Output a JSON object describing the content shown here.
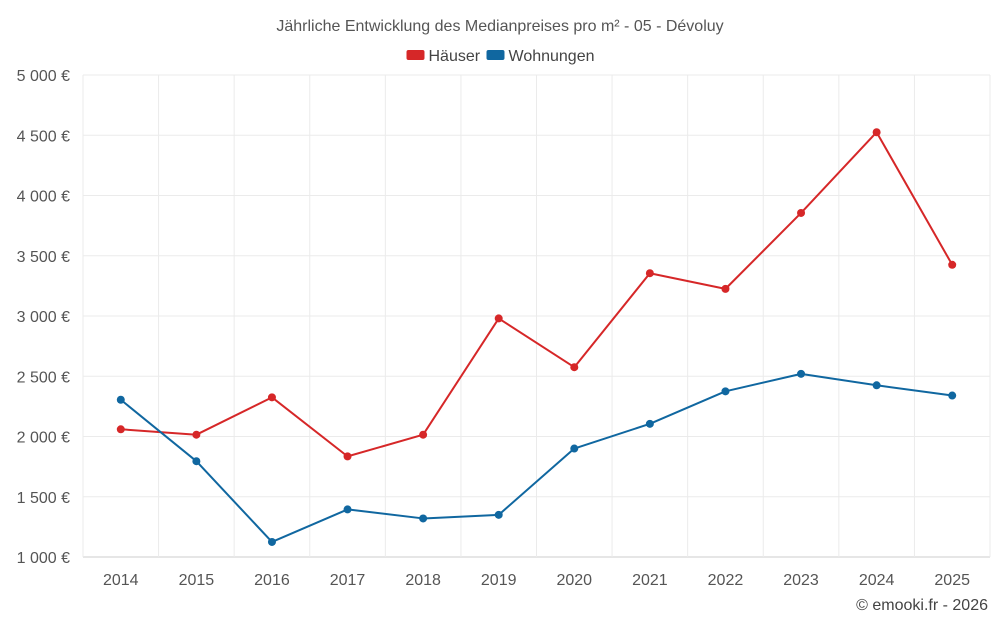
{
  "chart_data": {
    "type": "line",
    "title": "Jährliche Entwicklung des Medianpreises pro m² - 05 - Dévoluy",
    "categories": [
      "2014",
      "2015",
      "2016",
      "2017",
      "2018",
      "2019",
      "2020",
      "2021",
      "2022",
      "2023",
      "2024",
      "2025"
    ],
    "series": [
      {
        "name": "Häuser",
        "color": "#d62728",
        "values": [
          2060,
          2015,
          2325,
          1835,
          2015,
          2980,
          2575,
          3355,
          3225,
          3855,
          4525,
          3425
        ]
      },
      {
        "name": "Wohnungen",
        "color": "#1067a0",
        "values": [
          2305,
          1795,
          1125,
          1395,
          1320,
          1350,
          1900,
          2105,
          2375,
          2520,
          2425,
          2340
        ]
      }
    ],
    "ylim": [
      1000,
      5000
    ],
    "yticks": [
      1000,
      1500,
      2000,
      2500,
      3000,
      3500,
      4000,
      4500,
      5000
    ],
    "ytick_labels": [
      "1 000 €",
      "1 500 €",
      "2 000 €",
      "2 500 €",
      "3 000 €",
      "3 500 €",
      "4 000 €",
      "4 500 €",
      "5 000 €"
    ],
    "xlabel": "",
    "ylabel": "",
    "grid": true,
    "legend_position": "top-center"
  },
  "credit": "© emooki.fr - 2026"
}
